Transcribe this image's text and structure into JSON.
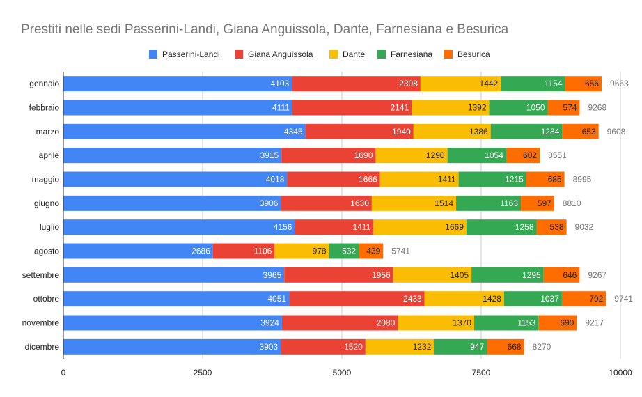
{
  "chart_data": {
    "type": "bar",
    "orientation": "horizontal",
    "stacked": true,
    "title": "Prestiti nelle sedi Passerini-Landi, Giana Anguissola, Dante, Farnesiana e Besurica",
    "xlabel": "",
    "ylabel": "",
    "xlim": [
      0,
      10000
    ],
    "xticks": [
      0,
      2500,
      5000,
      7500,
      10000
    ],
    "grid": true,
    "legend_position": "top",
    "categories": [
      "gennaio",
      "febbraio",
      "marzo",
      "aprile",
      "maggio",
      "giugno",
      "luglio",
      "agosto",
      "settembre",
      "ottobre",
      "novembre",
      "dicembre"
    ],
    "series": [
      {
        "name": "Passerini-Landi",
        "color": "#4285f4",
        "label_color": "#ffffff",
        "values": [
          4103,
          4111,
          4345,
          3915,
          4018,
          3906,
          4156,
          2686,
          3965,
          4051,
          3924,
          3903
        ]
      },
      {
        "name": "Giana Anguissola",
        "color": "#ea4335",
        "label_color": "#ffffff",
        "values": [
          2308,
          2141,
          1940,
          1690,
          1666,
          1630,
          1411,
          1106,
          1956,
          2433,
          2080,
          1520
        ]
      },
      {
        "name": "Dante",
        "color": "#fbbc04",
        "label_color": "#222222",
        "values": [
          1442,
          1392,
          1386,
          1290,
          1411,
          1514,
          1669,
          978,
          1405,
          1428,
          1370,
          1232
        ]
      },
      {
        "name": "Farnesiana",
        "color": "#34a853",
        "label_color": "#ffffff",
        "values": [
          1154,
          1050,
          1284,
          1054,
          1215,
          1163,
          1258,
          532,
          1295,
          1037,
          1153,
          947
        ]
      },
      {
        "name": "Besurica",
        "color": "#ff6d01",
        "label_color": "#222222",
        "values": [
          656,
          574,
          653,
          602,
          685,
          597,
          538,
          439,
          646,
          792,
          690,
          668
        ]
      }
    ],
    "totals": [
      9663,
      9268,
      9608,
      8551,
      8995,
      8810,
      9032,
      5741,
      9267,
      9741,
      9217,
      8270
    ]
  }
}
